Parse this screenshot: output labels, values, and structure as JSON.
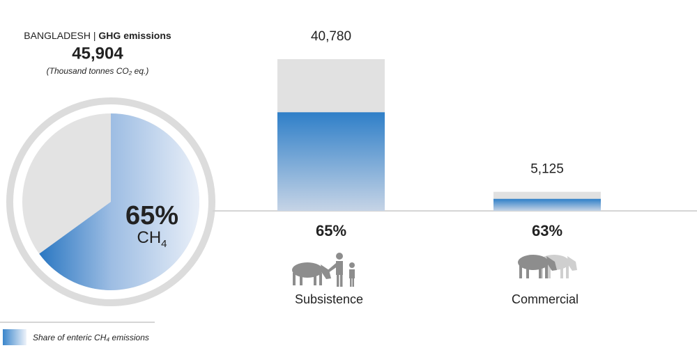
{
  "chart_data": [
    {
      "type": "pie",
      "country": "BANGLADESH |",
      "title": "GHG emissions",
      "total_label": "45,904",
      "unit": "(Thousand tonnes CO₂ eq.)",
      "values": [
        65
      ],
      "value_labels": [
        "65%"
      ],
      "gas": "CH",
      "gas_subscript": "4",
      "legend": "Share of enteric CH₄ emissions"
    },
    {
      "type": "bar",
      "categories": [
        "Subsistence",
        "Commercial"
      ],
      "values": [
        40780,
        5125
      ],
      "value_labels": [
        "40,780",
        "5,125"
      ],
      "shares": [
        65,
        63
      ],
      "share_labels": [
        "65%",
        "63%"
      ]
    }
  ]
}
